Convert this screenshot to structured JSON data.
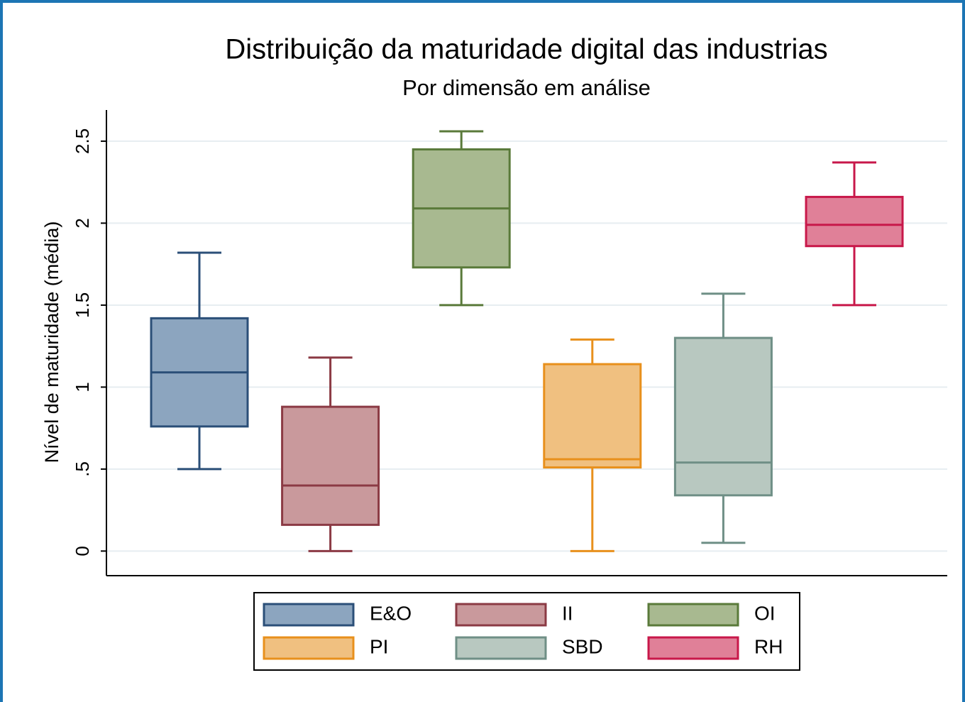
{
  "chart_data": {
    "type": "box",
    "title": "Distribuição da maturidade digital das industrias",
    "subtitle": "Por dimensão em análise",
    "y_label": "Nível de maturidade (média)",
    "ylim": [
      -0.15,
      2.69
    ],
    "yticks": [
      0,
      {
        "value": 0.5,
        "label": ".5"
      },
      1,
      1.5,
      2,
      2.5
    ],
    "grid": true,
    "legend": "bottom",
    "series": [
      {
        "name": "E&O",
        "color": "#2b4f78",
        "fill": "#8ca5bf",
        "min": 0.5,
        "q1": 0.76,
        "median": 1.09,
        "q3": 1.42,
        "max": 1.82
      },
      {
        "name": "II",
        "color": "#8b3a44",
        "fill": "#c9999c",
        "min": 0,
        "q1": 0.16,
        "median": 0.4,
        "q3": 0.88,
        "max": 1.18
      },
      {
        "name": "OI",
        "color": "#5a7a3a",
        "fill": "#a8b990",
        "min": 1.5,
        "q1": 1.73,
        "median": 2.09,
        "q3": 2.45,
        "max": 2.56
      },
      {
        "name": "PI",
        "color": "#e8901c",
        "fill": "#f0c080",
        "min": 0,
        "q1": 0.51,
        "median": 0.56,
        "q3": 1.14,
        "max": 1.29
      },
      {
        "name": "SBD",
        "color": "#6f8f86",
        "fill": "#b8c8c0",
        "min": 0.05,
        "q1": 0.34,
        "median": 0.54,
        "q3": 1.3,
        "max": 1.57
      },
      {
        "name": "RH",
        "color": "#c8184a",
        "fill": "#e08098",
        "min": 1.5,
        "q1": 1.86,
        "median": 1.99,
        "q3": 2.16,
        "max": 2.37
      }
    ]
  }
}
